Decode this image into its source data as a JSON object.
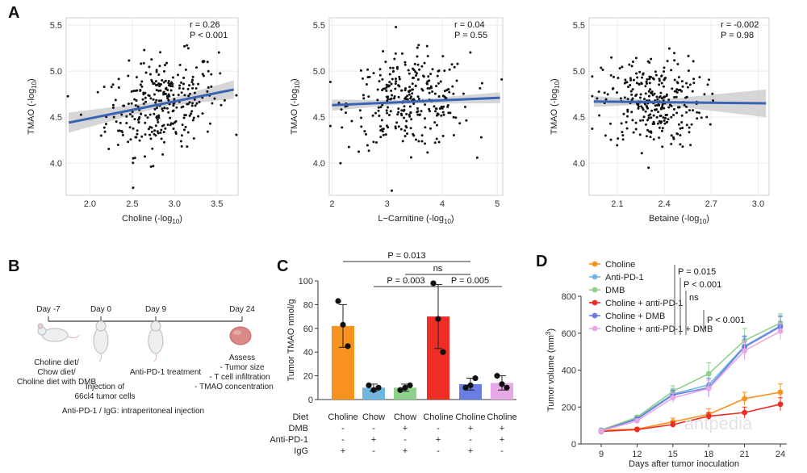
{
  "panels": {
    "A": "A",
    "B": "B",
    "C": "C",
    "D": "D"
  },
  "panel_a": {
    "ylabel": "TMAO (-log10)",
    "ylabel_sub": "10",
    "ylabel_main": "TMAO (-log",
    "plots": [
      {
        "xlabel_main": "Choline (-log",
        "xlabel_sub": "10",
        "r_text": "r = 0.26",
        "p_text": "P < 0.001",
        "xlim": [
          1.72,
          3.75
        ],
        "xticks": [
          "2.0",
          "2.5",
          "3.0",
          "3.5"
        ],
        "xtick_vals": [
          2.0,
          2.5,
          3.0,
          3.5
        ],
        "fit": [
          [
            1.75,
            4.44
          ],
          [
            3.7,
            4.8
          ]
        ],
        "band": [
          0.11,
          0.03,
          0.1
        ],
        "center": [
          2.85,
          4.67
        ],
        "spread": [
          0.33,
          0.25
        ]
      },
      {
        "xlabel_main": "L−Carnitine (-log",
        "xlabel_sub": "10",
        "r_text": "r = 0.04",
        "p_text": "P = 0.55",
        "xlim": [
          1.95,
          5.1
        ],
        "xticks": [
          "2",
          "3",
          "4",
          "5"
        ],
        "xtick_vals": [
          2,
          3,
          4,
          5
        ],
        "fit": [
          [
            2.0,
            4.63
          ],
          [
            5.05,
            4.71
          ]
        ],
        "band": [
          0.06,
          0.02,
          0.06
        ],
        "center": [
          3.4,
          4.67
        ],
        "spread": [
          0.55,
          0.25
        ]
      },
      {
        "xlabel_main": "Betaine (-log",
        "xlabel_sub": "10",
        "r_text": "r = -0.002",
        "p_text": "P = 0.98",
        "xlim": [
          1.92,
          3.07
        ],
        "xticks": [
          "2.1",
          "2.4",
          "2.7",
          "3.0"
        ],
        "xtick_vals": [
          2.1,
          2.4,
          2.7,
          3.0
        ],
        "fit": [
          [
            1.95,
            4.67
          ],
          [
            3.05,
            4.65
          ]
        ],
        "band": [
          0.06,
          0.02,
          0.15
        ],
        "center": [
          2.33,
          4.68
        ],
        "spread": [
          0.16,
          0.25
        ]
      }
    ],
    "ylim": [
      3.65,
      5.58
    ],
    "yticks": [
      "4.0",
      "4.5",
      "5.0",
      "5.5"
    ],
    "ytick_vals": [
      4.0,
      4.5,
      5.0,
      5.5
    ]
  },
  "panel_b": {
    "timepoints": [
      "Day -7",
      "Day 0",
      "Day 9",
      "Day 24"
    ],
    "diet_text": [
      "Choline diet/",
      "Chow diet/",
      "Choline diet with DMB"
    ],
    "injection_text": [
      "Injection of",
      "66cl4 tumor cells"
    ],
    "treatment_text": "Anti-PD-1 treatment",
    "assess_text": [
      "Assess",
      "- Tumor size",
      "- T cell infiltration",
      "- TMAO concentration"
    ],
    "footnote": "Anti-PD-1 / IgG: intraperitoneal injection"
  },
  "chart_data": [
    {
      "type": "scatter",
      "panel": "A1",
      "title": "",
      "xlabel": "Choline (-log10)",
      "ylabel": "TMAO (-log10)",
      "xlim": [
        1.72,
        3.75
      ],
      "ylim": [
        3.65,
        5.58
      ],
      "annotation": [
        "r = 0.26",
        "P < 0.001"
      ],
      "regression": {
        "x": [
          1.75,
          3.7
        ],
        "y": [
          4.44,
          4.8
        ]
      }
    },
    {
      "type": "scatter",
      "panel": "A2",
      "xlabel": "L−Carnitine (-log10)",
      "ylabel": "TMAO (-log10)",
      "xlim": [
        1.95,
        5.1
      ],
      "ylim": [
        3.65,
        5.58
      ],
      "annotation": [
        "r = 0.04",
        "P = 0.55"
      ],
      "regression": {
        "x": [
          2.0,
          5.05
        ],
        "y": [
          4.63,
          4.71
        ]
      }
    },
    {
      "type": "scatter",
      "panel": "A3",
      "xlabel": "Betaine (-log10)",
      "ylabel": "TMAO (-log10)",
      "xlim": [
        1.92,
        3.07
      ],
      "ylim": [
        3.65,
        5.58
      ],
      "annotation": [
        "r = -0.002",
        "P = 0.98"
      ],
      "regression": {
        "x": [
          1.95,
          3.05
        ],
        "y": [
          4.67,
          4.65
        ]
      }
    },
    {
      "type": "bar",
      "panel": "C",
      "ylabel": "Tumor TMAO  nmol/g",
      "ylim": [
        0,
        100
      ],
      "yticks": [
        0,
        20,
        40,
        60,
        80,
        100
      ],
      "categories": [
        "Choline",
        "Chow",
        "Chow",
        "Choline",
        "Choline",
        "Choline"
      ],
      "values": [
        62,
        10,
        10,
        70,
        13,
        14
      ],
      "err": [
        18,
        3,
        3,
        27,
        5,
        6
      ],
      "colors": [
        "#f7931e",
        "#6fb6e0",
        "#8fd18a",
        "#ee2d24",
        "#6a7de3",
        "#e7a8e8"
      ],
      "points": [
        [
          83,
          63,
          45
        ],
        [
          12,
          8,
          10
        ],
        [
          8,
          10,
          12
        ],
        [
          98,
          68,
          40
        ],
        [
          10,
          12,
          18
        ],
        [
          20,
          13,
          10
        ]
      ],
      "row_labels": [
        "Diet",
        "DMB",
        "Anti-PD-1",
        "IgG"
      ],
      "rows": [
        [
          "-",
          "-",
          "+",
          "-",
          "+",
          "+"
        ],
        [
          "-",
          "+",
          "-",
          "+",
          "-",
          "+"
        ],
        [
          "+",
          "-",
          "+",
          "-",
          "+",
          "-"
        ]
      ],
      "comparisons": [
        {
          "text": "P = 0.013",
          "from": 0,
          "to": 4
        },
        {
          "text": "ns",
          "from": 2,
          "to": 4
        },
        {
          "text": "P = 0.003",
          "from": 1,
          "to": 3
        },
        {
          "text": "P = 0.005",
          "from": 3,
          "to": 5
        }
      ]
    },
    {
      "type": "line",
      "panel": "D",
      "xlabel": "Days after tumor inoculation",
      "ylabel": "Tumor volume (mm³)",
      "x": [
        9,
        12,
        15,
        18,
        21,
        24
      ],
      "ylim": [
        0,
        800
      ],
      "yticks": [
        0,
        200,
        400,
        600,
        800
      ],
      "series": [
        {
          "name": "Choline",
          "color": "#f7931e",
          "values": [
            75,
            80,
            120,
            160,
            245,
            280
          ],
          "err": [
            5,
            8,
            20,
            30,
            35,
            45
          ]
        },
        {
          "name": "Anti-PD-1",
          "color": "#6fb6e0",
          "values": [
            70,
            140,
            270,
            320,
            530,
            640
          ],
          "err": [
            5,
            10,
            30,
            60,
            50,
            55
          ]
        },
        {
          "name": "DMB",
          "color": "#8fd18a",
          "values": [
            75,
            145,
            285,
            380,
            560,
            655
          ],
          "err": [
            5,
            10,
            30,
            60,
            65,
            50
          ]
        },
        {
          "name": "Choline + anti-PD-1",
          "color": "#ee2d24",
          "values": [
            68,
            78,
            105,
            150,
            170,
            215
          ],
          "err": [
            5,
            8,
            15,
            20,
            30,
            35
          ]
        },
        {
          "name": "Choline + DMB",
          "color": "#6a7de3",
          "values": [
            72,
            135,
            265,
            305,
            525,
            635
          ],
          "err": [
            5,
            10,
            25,
            50,
            60,
            55
          ]
        },
        {
          "name": "Choline + anti-PD-1 + DMB",
          "color": "#e7a8e8",
          "values": [
            70,
            125,
            250,
            300,
            505,
            610
          ],
          "err": [
            5,
            10,
            25,
            45,
            50,
            45
          ]
        }
      ],
      "stats": [
        "P = 0.015",
        "P < 0.001",
        "ns",
        "P < 0.001"
      ]
    }
  ],
  "labels_c": {
    "ylabel": "Tumor TMAO  nmol/g"
  },
  "labels_d": {
    "ylabel_main": "Tumor volume (mm",
    "ylabel_sup": "3",
    "xlabel": "Days after tumor inoculation",
    "watermark": "antpedia"
  }
}
